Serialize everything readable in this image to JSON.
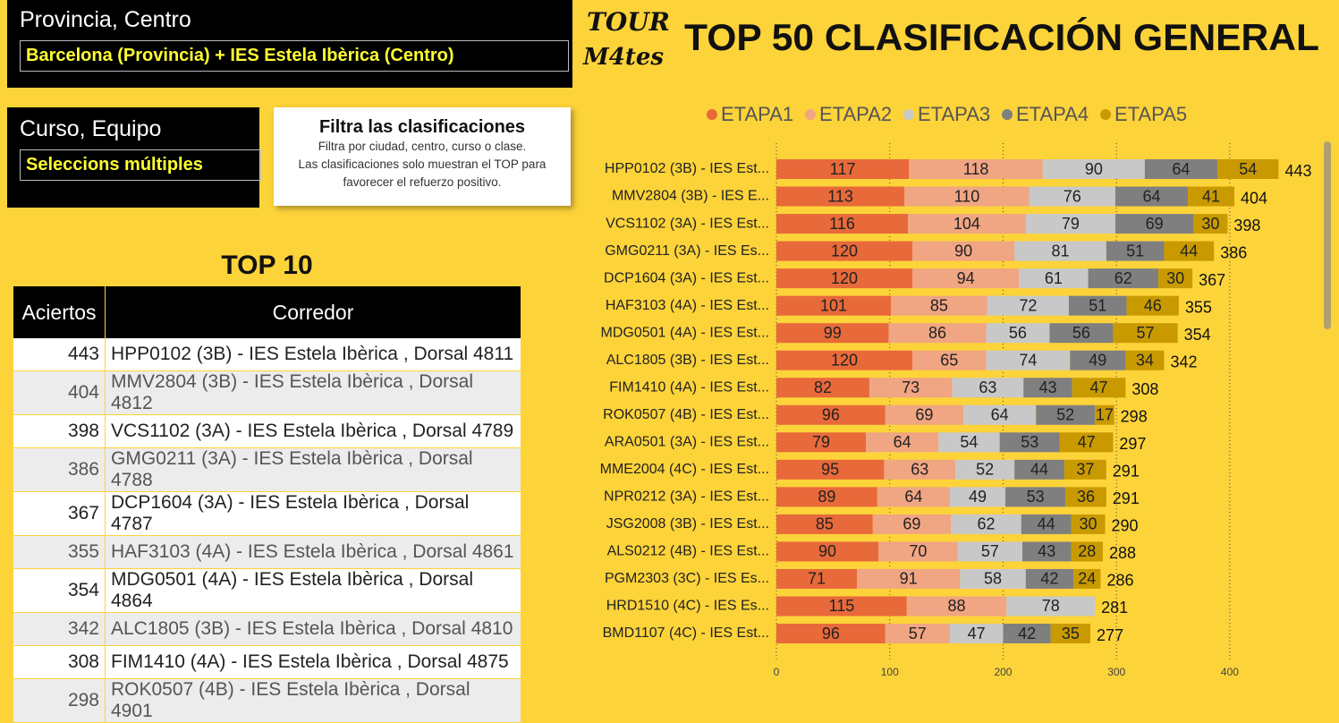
{
  "filters": [
    {
      "title": "Provincia, Centro",
      "value": "Barcelona (Provincia) + IES Estela Ibèrica (Centro)"
    },
    {
      "title": "Curso, Equipo",
      "value": "Seleccions múltiples"
    }
  ],
  "logo": {
    "top": "TOUR",
    "bottom": "M4tes"
  },
  "info": {
    "title": "Filtra las clasificaciones",
    "lines": [
      "Filtra por ciudad, centro, curso o clase.",
      "Las clasificaciones solo muestran el TOP para",
      "favorecer el refuerzo positivo."
    ]
  },
  "table": {
    "title": "TOP 10",
    "columns": [
      "Aciertos",
      "Corredor"
    ],
    "rows": [
      [
        443,
        "HPP0102 (3B) - IES Estela Ibèrica , Dorsal 4811"
      ],
      [
        404,
        "MMV2804 (3B) - IES Estela Ibèrica , Dorsal 4812"
      ],
      [
        398,
        "VCS1102 (3A) - IES Estela Ibèrica , Dorsal 4789"
      ],
      [
        386,
        "GMG0211 (3A) - IES Estela Ibèrica , Dorsal 4788"
      ],
      [
        367,
        "DCP1604 (3A) - IES Estela Ibèrica , Dorsal 4787"
      ],
      [
        355,
        "HAF3103 (4A) - IES Estela Ibèrica , Dorsal 4861"
      ],
      [
        354,
        "MDG0501 (4A) - IES Estela Ibèrica , Dorsal 4864"
      ],
      [
        342,
        "ALC1805 (3B) - IES Estela Ibèrica , Dorsal 4810"
      ],
      [
        308,
        "FIM1410 (4A) - IES Estela Ibèrica , Dorsal 4875"
      ],
      [
        298,
        "ROK0507 (4B) - IES Estela Ibèrica , Dorsal 4901"
      ]
    ]
  },
  "chart_data": {
    "type": "stacked_bar_h",
    "title": "TOP 50 CLASIFICACIÓN GENERAL",
    "categories": [
      "HPP0102 (3B) - IES Est...",
      "MMV2804 (3B) - IES E...",
      "VCS1102 (3A) - IES Est...",
      "GMG0211 (3A) - IES Es...",
      "DCP1604 (3A) - IES Est...",
      "HAF3103 (4A) - IES Est...",
      "MDG0501 (4A) - IES Est...",
      "ALC1805 (3B) - IES Est...",
      "FIM1410 (4A) - IES Est...",
      "ROK0507 (4B) - IES Est...",
      "ARA0501 (3A) - IES Est...",
      "MME2004 (4C) - IES Est...",
      "NPR0212 (3A) - IES Est...",
      "JSG2008 (3B) - IES Est...",
      "ALS0212 (4B) - IES Est...",
      "PGM2303 (3C) - IES Es...",
      "HRD1510 (4C) - IES Es...",
      "BMD1107 (4C) - IES Est..."
    ],
    "series": [
      {
        "name": "ETAPA1",
        "color": "#e8693a",
        "values": [
          117,
          113,
          116,
          120,
          120,
          101,
          99,
          120,
          82,
          96,
          79,
          95,
          89,
          85,
          90,
          71,
          115,
          96
        ]
      },
      {
        "name": "ETAPA2",
        "color": "#f0a583",
        "values": [
          118,
          110,
          104,
          90,
          94,
          85,
          86,
          65,
          73,
          69,
          64,
          63,
          64,
          69,
          70,
          91,
          88,
          57
        ]
      },
      {
        "name": "ETAPA3",
        "color": "#c8c8c8",
        "values": [
          90,
          76,
          79,
          81,
          61,
          72,
          56,
          74,
          63,
          64,
          54,
          52,
          49,
          62,
          57,
          58,
          78,
          47
        ]
      },
      {
        "name": "ETAPA4",
        "color": "#7f7f7f",
        "values": [
          64,
          64,
          69,
          51,
          62,
          51,
          56,
          49,
          43,
          52,
          53,
          44,
          53,
          44,
          43,
          42,
          0,
          42
        ]
      },
      {
        "name": "ETAPA5",
        "color": "#c99a00",
        "values": [
          54,
          41,
          30,
          44,
          30,
          46,
          57,
          34,
          47,
          17,
          47,
          37,
          36,
          30,
          28,
          24,
          0,
          35
        ]
      }
    ],
    "totals": [
      443,
      404,
      398,
      386,
      367,
      355,
      354,
      342,
      308,
      298,
      297,
      291,
      291,
      290,
      288,
      286,
      281,
      277
    ],
    "xlim": [
      0,
      475
    ],
    "xticks": [
      0,
      100,
      200,
      300,
      400
    ],
    "grid": true,
    "legend": "top"
  }
}
